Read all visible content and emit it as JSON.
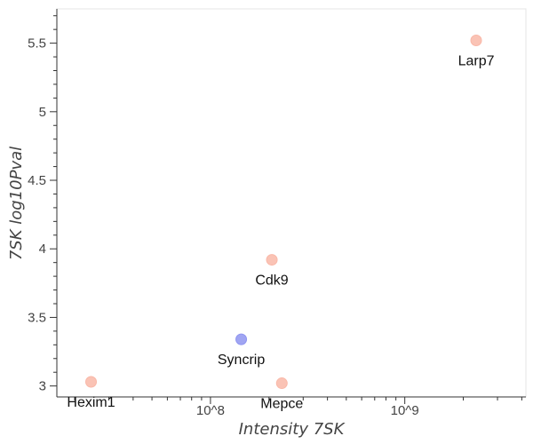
{
  "chart_data": {
    "type": "scatter",
    "title": "",
    "xlabel": "Intensity 7SK",
    "ylabel": "7SK log10Pval",
    "xscale": "log",
    "xlim": [
      16200000,
      4200000000
    ],
    "ylim": [
      2.92,
      5.75
    ],
    "grid": false,
    "x_ticks": [
      {
        "value": 100000000,
        "label": "10^8"
      },
      {
        "value": 1000000000,
        "label": "10^9"
      }
    ],
    "y_ticks": [
      {
        "value": 3,
        "label": "3"
      },
      {
        "value": 3.5,
        "label": "3.5"
      },
      {
        "value": 4,
        "label": "4"
      },
      {
        "value": 4.5,
        "label": "4.5"
      },
      {
        "value": 5,
        "label": "5"
      },
      {
        "value": 5.5,
        "label": "5.5"
      }
    ],
    "points": [
      {
        "label": "Larp7",
        "x": 2330000000,
        "y": 5.52,
        "color": "#f9b8a8"
      },
      {
        "label": "Cdk9",
        "x": 207000000,
        "y": 3.92,
        "color": "#f9b8a8"
      },
      {
        "label": "Syncrip",
        "x": 144000000,
        "y": 3.34,
        "color": "#8f95f0"
      },
      {
        "label": "Hexim1",
        "x": 24300000,
        "y": 3.03,
        "color": "#f9b8a8"
      },
      {
        "label": "Mepce",
        "x": 233000000,
        "y": 3.02,
        "color": "#f9b8a8"
      }
    ]
  }
}
